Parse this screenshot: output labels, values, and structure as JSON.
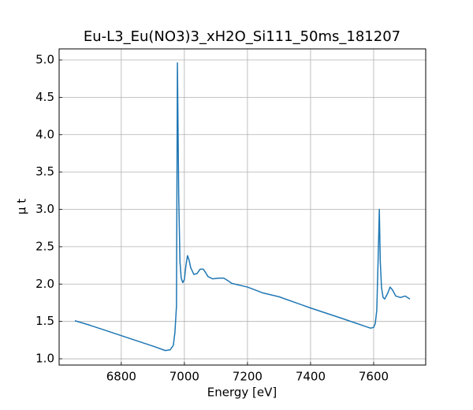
{
  "chart_data": {
    "type": "line",
    "title": "Eu-L3_Eu(NO3)3_xH2O_Si111_50ms_181207",
    "xlabel": "Energy [eV]",
    "ylabel": "μ t",
    "x": [
      6653,
      6700,
      6800,
      6900,
      6940,
      6955,
      6965,
      6970,
      6975,
      6978,
      6982,
      6986,
      6990,
      6995,
      7000,
      7005,
      7010,
      7015,
      7020,
      7030,
      7040,
      7050,
      7060,
      7068,
      7075,
      7090,
      7110,
      7125,
      7140,
      7150,
      7200,
      7250,
      7300,
      7400,
      7500,
      7590,
      7600,
      7605,
      7610,
      7614,
      7618,
      7621,
      7625,
      7630,
      7635,
      7645,
      7652,
      7660,
      7670,
      7685,
      7700,
      7715
    ],
    "series": [
      {
        "color": "#1f77b4",
        "values": [
          1.51,
          1.45,
          1.31,
          1.17,
          1.11,
          1.12,
          1.18,
          1.35,
          1.7,
          4.96,
          3.2,
          2.3,
          2.08,
          2.02,
          2.06,
          2.25,
          2.38,
          2.32,
          2.22,
          2.13,
          2.14,
          2.2,
          2.2,
          2.15,
          2.1,
          2.07,
          2.08,
          2.08,
          2.04,
          2.01,
          1.96,
          1.88,
          1.83,
          1.68,
          1.54,
          1.41,
          1.42,
          1.47,
          1.65,
          2.3,
          3.0,
          2.3,
          1.95,
          1.82,
          1.8,
          1.88,
          1.96,
          1.92,
          1.84,
          1.82,
          1.84,
          1.8
        ]
      }
    ],
    "xlim": [
      6603,
      7765
    ],
    "ylim": [
      0.916,
      5.148
    ],
    "xticks": [
      6800,
      7000,
      7200,
      7400,
      7600
    ],
    "yticks": [
      {
        "value": 1,
        "label": "1.0"
      },
      1.5,
      {
        "value": 2,
        "label": "2.0"
      },
      2.5,
      {
        "value": 3,
        "label": "3.0"
      },
      3.5,
      {
        "value": 4,
        "label": "4.0"
      },
      4.5,
      {
        "value": 5,
        "label": "5.0"
      }
    ],
    "grid": true
  }
}
